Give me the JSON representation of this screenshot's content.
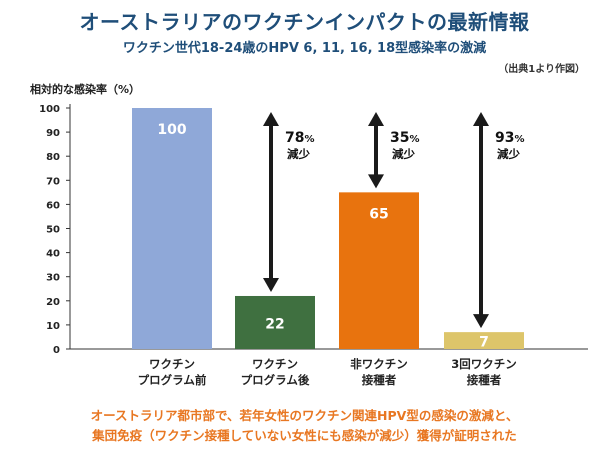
{
  "header": {
    "title": "オーストラリアのワクチンインパクトの最新情報",
    "subtitle": "ワクチン世代18-24歳のHPV 6, 11, 16, 18型感染率の激減",
    "source": "（出典1より作図）"
  },
  "footer": {
    "line1": "オーストラリア都市部で、若年女性のワクチン関連HPV型の感染の激減と、",
    "line2": "集団免疫（ワクチン接種していない女性にも感染が減少）獲得が証明された"
  },
  "colors": {
    "title": "#1f4e79",
    "footer": "#e87722",
    "arrow": "#1a1a1a"
  },
  "chart_data": {
    "type": "bar",
    "ylabel": "相対的な感染率（%）",
    "ylim": [
      0,
      100
    ],
    "yticks": [
      0,
      10,
      20,
      30,
      40,
      50,
      60,
      70,
      80,
      90,
      100
    ],
    "categories": [
      [
        "ワクチン",
        "プログラム前"
      ],
      [
        "ワクチン",
        "プログラム後"
      ],
      [
        "非ワクチン",
        "接種者"
      ],
      [
        "3回ワクチン",
        "接種者"
      ]
    ],
    "values": [
      100,
      22,
      65,
      7
    ],
    "value_labels": [
      "100",
      "22",
      "65",
      "7"
    ],
    "bar_colors": [
      "#8fa8d8",
      "#3f7040",
      "#e8730e",
      "#ddc56a"
    ],
    "annotations": [
      {
        "from": 100,
        "to": 22,
        "pct": "78",
        "unit": "%",
        "note": "減少"
      },
      {
        "from": 100,
        "to": 65,
        "pct": "35",
        "unit": "%",
        "note": "減少"
      },
      {
        "from": 100,
        "to": 7,
        "pct": "93",
        "unit": "%",
        "note": "減少"
      }
    ]
  }
}
